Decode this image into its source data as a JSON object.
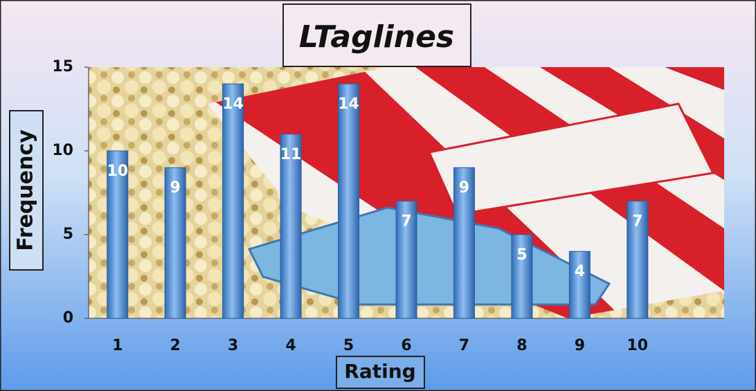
{
  "chart_data": {
    "type": "bar",
    "title": "LTaglines",
    "x_label": "Rating",
    "y_label": "Frequency",
    "categories": [
      "1",
      "2",
      "3",
      "4",
      "5",
      "6",
      "7",
      "8",
      "9",
      "10",
      null
    ],
    "values": [
      10,
      9,
      14,
      11,
      14,
      7,
      9,
      5,
      4,
      7,
      null
    ],
    "color": "#4f8fd9",
    "ylim": [
      0,
      15
    ],
    "yticks": [
      0,
      5,
      10,
      15
    ],
    "grid": false
  }
}
